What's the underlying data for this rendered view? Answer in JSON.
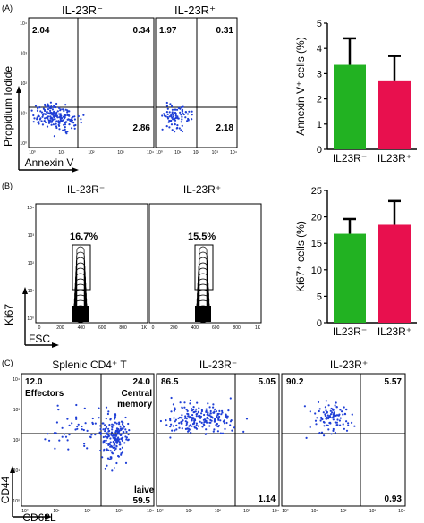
{
  "panel_labels": {
    "a": "(A)",
    "b": "(B)",
    "c": "(C)"
  },
  "colors": {
    "blue": "#1f3fd6",
    "green": "#22b222",
    "red": "#e8104e",
    "axis": "#000000"
  },
  "flow_ticks": [
    "10⁰",
    "10¹",
    "10²",
    "10³",
    "10⁴"
  ],
  "fsc_ticks": [
    "0",
    "200",
    "400",
    "600",
    "800",
    "1K"
  ],
  "ki67_ticks": [
    "10⁰",
    "10¹",
    "10²",
    "10³",
    "10⁴"
  ],
  "panel_a": {
    "ylabel": "Propidium Iodide",
    "xlabel": "Annexin V",
    "plots": [
      {
        "title": "IL-23R⁻",
        "q_ul": "2.04",
        "q_ur": "0.34",
        "q_lr": "2.86"
      },
      {
        "title": "IL-23R⁺",
        "q_ul": "1.97",
        "q_ur": "0.31",
        "q_lr": "2.18"
      }
    ]
  },
  "panel_b": {
    "ylabel": "Ki67",
    "xlabel": "FSC",
    "plots": [
      {
        "title": "IL-23R⁻",
        "gate": "16.7%"
      },
      {
        "title": "IL-23R⁺",
        "gate": "15.5%"
      }
    ]
  },
  "panel_c": {
    "ylabel": "CD44",
    "xlabel": "CD62L",
    "plots": [
      {
        "title": "Splenic CD4⁺ T",
        "q_ul": "12.0",
        "q_ur": "24.0",
        "q_lr": "59.5",
        "ul_text": "Effectors",
        "ur_text1": "Central",
        "ur_text2": "memory",
        "lr_text": "laive"
      },
      {
        "title": "IL-23R⁻",
        "q_ul": "86.5",
        "q_ur": "5.05",
        "q_lr": "1.14"
      },
      {
        "title": "IL-23R⁺",
        "q_ul": "90.2",
        "q_ur": "5.57",
        "q_lr": "0.93"
      }
    ]
  },
  "chart_data": [
    {
      "type": "bar",
      "panel": "A",
      "categories": [
        "IL23R⁻",
        "IL23R⁺"
      ],
      "values": [
        3.35,
        2.7
      ],
      "errors": [
        1.05,
        1.0
      ],
      "ylabel": "Annexin V⁺ cells (%)",
      "ylim": [
        0,
        5
      ],
      "yticks": [
        "0",
        "1",
        "2",
        "3",
        "4",
        "5"
      ],
      "colors": [
        "#22b222",
        "#e8104e"
      ]
    },
    {
      "type": "bar",
      "panel": "B",
      "categories": [
        "IL23R⁻",
        "IL23R⁺"
      ],
      "values": [
        16.8,
        18.5
      ],
      "errors": [
        2.8,
        4.5
      ],
      "ylabel": "Ki67⁺ cells (%)",
      "ylim": [
        0,
        25
      ],
      "yticks": [
        "0",
        "5",
        "10",
        "15",
        "20",
        "25"
      ],
      "colors": [
        "#22b222",
        "#e8104e"
      ]
    }
  ]
}
